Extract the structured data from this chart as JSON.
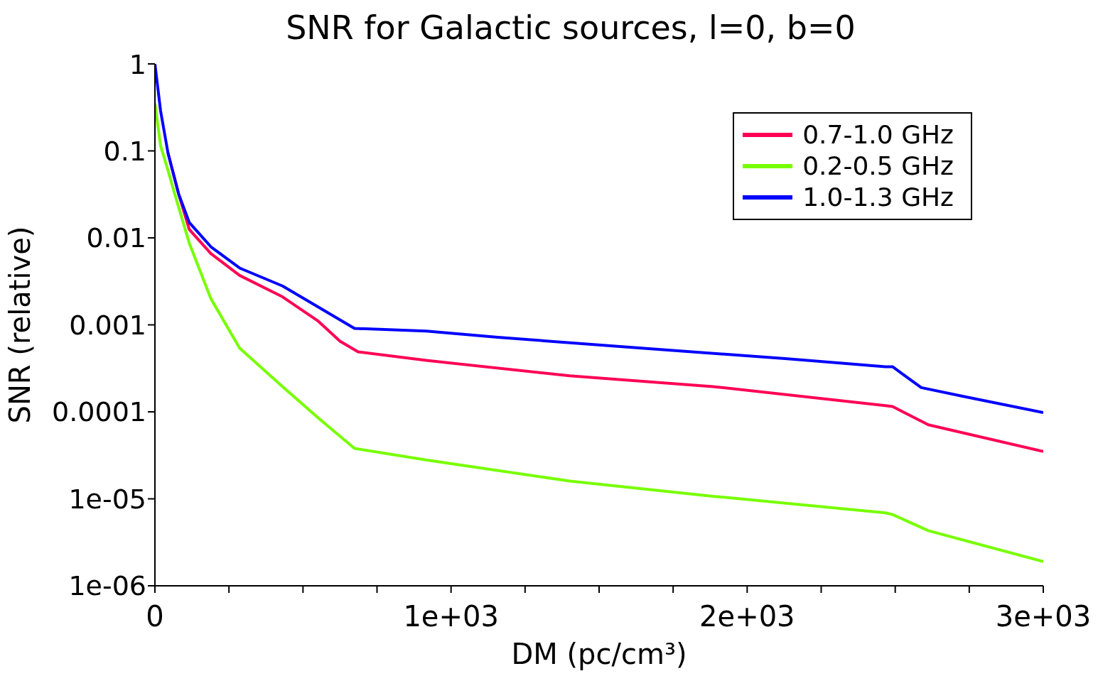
{
  "chart_data": {
    "type": "line",
    "title": "SNR for Galactic sources, l=0, b=0",
    "xlabel": "DM (pc/cm³)",
    "ylabel": "SNR (relative)",
    "log": "y",
    "legend": "top right",
    "xlim": [
      0,
      3000
    ],
    "xticks": [
      0,
      {
        "value": 250,
        "label": null
      },
      {
        "value": 500,
        "label": null
      },
      {
        "value": 750,
        "label": null
      },
      {
        "value": 1000,
        "label": "1e+03"
      },
      {
        "value": 1250,
        "label": null
      },
      {
        "value": 1500,
        "label": null
      },
      {
        "value": 1750,
        "label": null
      },
      {
        "value": 2000,
        "label": "2e+03"
      },
      {
        "value": 2250,
        "label": null
      },
      {
        "value": 2500,
        "label": null
      },
      {
        "value": 2750,
        "label": null
      },
      {
        "value": 3000,
        "label": "3e+03"
      }
    ],
    "ylim": [
      1e-06,
      1
    ],
    "yticks": [
      {
        "value": 1e-06,
        "label": "1e-06"
      },
      {
        "value": 1e-05,
        "label": "1e-05"
      },
      0.0001,
      0.001,
      0.01,
      0.1,
      1
    ],
    "series": [
      {
        "name": "0.7-1.0 GHz",
        "color": "#ff0055",
        "x": [
          44,
          80,
          116,
          189,
          286,
          431,
          552,
          625,
          686,
          916,
          1401,
          1885,
          2467,
          2491,
          2612,
          3000
        ],
        "values": [
          0.095,
          0.032,
          0.0125,
          0.0066,
          0.0037,
          0.0021,
          0.0011,
          0.00065,
          0.00049,
          0.00039,
          0.00026,
          0.000195,
          0.000118,
          0.000115,
          7.1e-05,
          3.5e-05
        ]
      },
      {
        "name": "0.2-0.5 GHz",
        "color": "#77ff00",
        "x": [
          0,
          19,
          44,
          68,
          116,
          189,
          286,
          431,
          552,
          674,
          916,
          1401,
          1885,
          2467,
          2491,
          2612,
          3000
        ],
        "values": [
          0.35,
          0.115,
          0.06,
          0.031,
          0.0087,
          0.002,
          0.00054,
          0.000195,
          8.5e-05,
          3.8e-05,
          2.8e-05,
          1.6e-05,
          1.07e-05,
          6.9e-06,
          6.6e-06,
          4.3e-06,
          1.9e-06
        ]
      },
      {
        "name": "1.0-1.3 GHz",
        "color": "#0000ff",
        "x": [
          0,
          19,
          44,
          80,
          116,
          189,
          286,
          431,
          552,
          674,
          916,
          1158,
          1643,
          2128,
          2467,
          2491,
          2588,
          2733,
          3000
        ],
        "values": [
          1,
          0.29,
          0.095,
          0.032,
          0.015,
          0.0079,
          0.0045,
          0.0028,
          0.0016,
          0.00091,
          0.00085,
          0.00072,
          0.00054,
          0.00041,
          0.00033,
          0.00033,
          0.00019,
          0.00015,
          9.8e-05
        ]
      }
    ]
  }
}
